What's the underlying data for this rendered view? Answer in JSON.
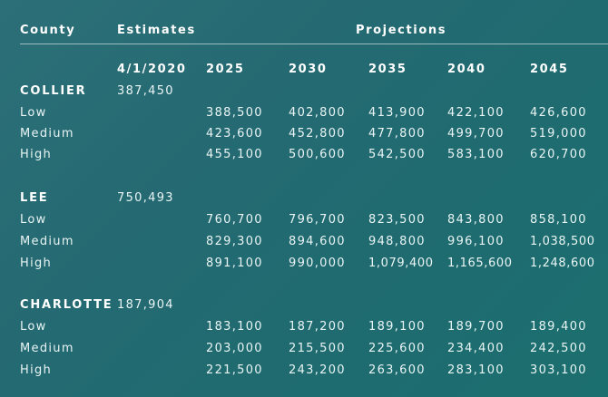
{
  "header": {
    "county": "County",
    "estimates": "Estimates",
    "projections": "Projections"
  },
  "years": {
    "estimate_date": "4/1/2020",
    "y2025": "2025",
    "y2030": "2030",
    "y2035": "2035",
    "y2040": "2040",
    "y2045": "2045"
  },
  "counties": [
    {
      "name": "COLLIER",
      "estimate": "387,450",
      "rows": [
        {
          "label": "Low",
          "values": [
            "388,500",
            "402,800",
            "413,900",
            "422,100",
            "426,600"
          ]
        },
        {
          "label": "Medium",
          "values": [
            "423,600",
            "452,800",
            "477,800",
            "499,700",
            "519,000"
          ]
        },
        {
          "label": "High",
          "values": [
            "455,100",
            "500,600",
            "542,500",
            "583,100",
            "620,700"
          ]
        }
      ]
    },
    {
      "name": "LEE",
      "estimate": "750,493",
      "rows": [
        {
          "label": "Low",
          "values": [
            "760,700",
            "796,700",
            "823,500",
            "843,800",
            "858,100"
          ]
        },
        {
          "label": "Medium",
          "values": [
            "829,300",
            "894,600",
            "948,800",
            "996,100",
            "1,038,500"
          ]
        },
        {
          "label": "High",
          "values": [
            "891,100",
            "990,000",
            "1,079,400",
            "1,165,600",
            "1,248,600"
          ]
        }
      ]
    },
    {
      "name": "CHARLOTTE",
      "estimate": "187,904",
      "rows": [
        {
          "label": "Low",
          "values": [
            "183,100",
            "187,200",
            "189,100",
            "189,700",
            "189,400"
          ]
        },
        {
          "label": "Medium",
          "values": [
            "203,000",
            "215,500",
            "225,600",
            "234,400",
            "242,500"
          ]
        },
        {
          "label": "High",
          "values": [
            "221,500",
            "243,200",
            "263,600",
            "283,100",
            "303,100"
          ]
        }
      ]
    }
  ]
}
